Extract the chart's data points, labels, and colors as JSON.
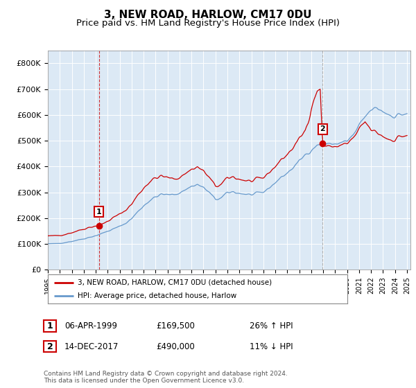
{
  "title": "3, NEW ROAD, HARLOW, CM17 0DU",
  "subtitle": "Price paid vs. HM Land Registry's House Price Index (HPI)",
  "title_fontsize": 11,
  "subtitle_fontsize": 9.5,
  "ylim": [
    0,
    850000
  ],
  "yticks": [
    0,
    100000,
    200000,
    300000,
    400000,
    500000,
    600000,
    700000,
    800000
  ],
  "ytick_labels": [
    "£0",
    "£100K",
    "£200K",
    "£300K",
    "£400K",
    "£500K",
    "£600K",
    "£700K",
    "£800K"
  ],
  "background_color": "#ffffff",
  "chart_bg_color": "#dce9f5",
  "grid_color": "#ffffff",
  "hpi_color": "#6699cc",
  "price_color": "#cc0000",
  "sale1_date_num": 1999.27,
  "sale1_price": 169500,
  "sale1_label": "1",
  "sale2_date_num": 2017.95,
  "sale2_price": 490000,
  "sale2_label": "2",
  "vline1_color": "#cc0000",
  "vline2_color": "#aaaaaa",
  "legend_label_price": "3, NEW ROAD, HARLOW, CM17 0DU (detached house)",
  "legend_label_hpi": "HPI: Average price, detached house, Harlow",
  "annotation1_date": "06-APR-1999",
  "annotation1_price": "£169,500",
  "annotation1_hpi": "26% ↑ HPI",
  "annotation2_date": "14-DEC-2017",
  "annotation2_price": "£490,000",
  "annotation2_hpi": "11% ↓ HPI",
  "footer": "Contains HM Land Registry data © Crown copyright and database right 2024.\nThis data is licensed under the Open Government Licence v3.0."
}
